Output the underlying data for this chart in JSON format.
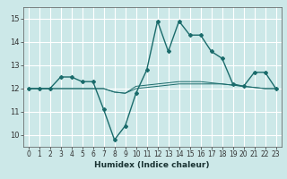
{
  "xlabel": "Humidex (Indice chaleur)",
  "ylabel": "",
  "bg_color": "#cce8e8",
  "grid_color": "#ffffff",
  "line_color": "#1a6b6b",
  "xlim": [
    -0.5,
    23.5
  ],
  "ylim": [
    9.5,
    15.5
  ],
  "yticks": [
    10,
    11,
    12,
    13,
    14,
    15
  ],
  "xticks": [
    0,
    1,
    2,
    3,
    4,
    5,
    6,
    7,
    8,
    9,
    10,
    11,
    12,
    13,
    14,
    15,
    16,
    17,
    18,
    19,
    20,
    21,
    22,
    23
  ],
  "series": [
    [
      12.0,
      12.0,
      12.0,
      12.5,
      12.5,
      12.3,
      12.3,
      11.1,
      9.8,
      10.4,
      11.8,
      12.8,
      14.9,
      13.6,
      14.9,
      14.3,
      14.3,
      13.6,
      13.3,
      12.2,
      12.1,
      12.7,
      12.7,
      12.0
    ],
    [
      12.0,
      12.0,
      12.0,
      12.0,
      12.0,
      12.0,
      12.0,
      12.0,
      11.85,
      11.8,
      12.0,
      12.05,
      12.1,
      12.15,
      12.2,
      12.2,
      12.2,
      12.2,
      12.2,
      12.15,
      12.1,
      12.05,
      12.0,
      12.0
    ],
    [
      12.0,
      12.0,
      12.0,
      12.0,
      12.0,
      12.0,
      12.0,
      12.0,
      11.85,
      11.8,
      12.1,
      12.15,
      12.2,
      12.25,
      12.3,
      12.3,
      12.3,
      12.25,
      12.2,
      12.15,
      12.1,
      12.05,
      12.0,
      12.0
    ]
  ],
  "tick_fontsize": 5.5,
  "xlabel_fontsize": 6.5
}
